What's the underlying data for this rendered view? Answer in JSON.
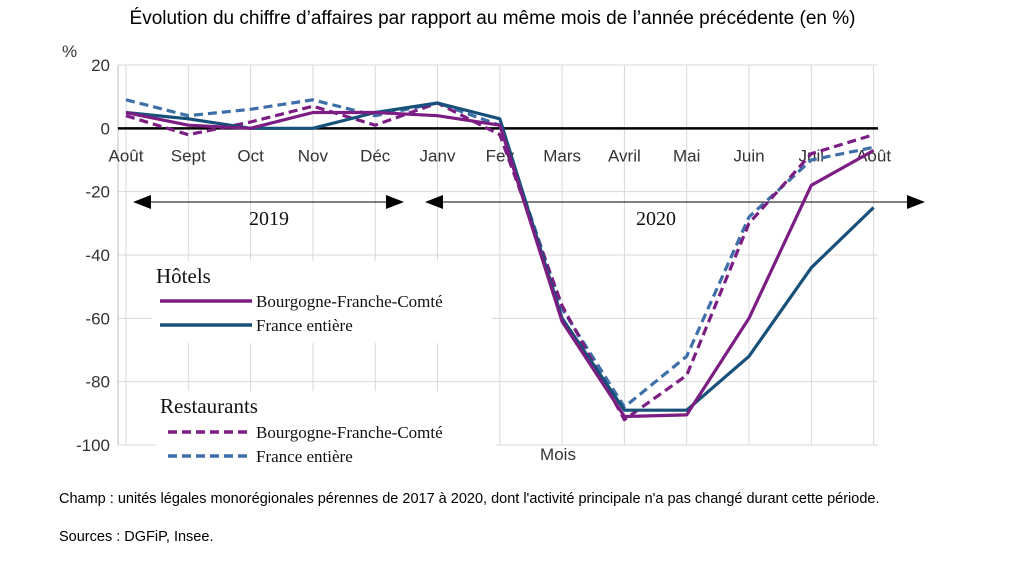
{
  "title": "Évolution du chiffre d’affaires par rapport au même mois de l’année précédente (en %)",
  "footnotes": {
    "champ": "Champ : unités légales monorégionales pérennes de 2017 à 2020, dont l'activité principale n'a pas changé durant cette période.",
    "sources": "Sources : DGFiP, Insee."
  },
  "chart_data": {
    "type": "line",
    "ylabel": "%",
    "xlabel": "Mois",
    "ylim": [
      -100,
      20
    ],
    "yticks": [
      20,
      0,
      -20,
      -40,
      -60,
      -80,
      -100
    ],
    "grid": true,
    "categories": [
      "Août",
      "Sept",
      "Oct",
      "Nov",
      "Déc",
      "Janv",
      "Fev",
      "Mars",
      "Avril",
      "Mai",
      "Juin",
      "Juil",
      "Août"
    ],
    "periods": [
      {
        "label": "2019",
        "from": "Août",
        "to": "Déc"
      },
      {
        "label": "2020",
        "from": "Janv",
        "to": "Août"
      }
    ],
    "legend_groups": [
      {
        "title": "Hôtels",
        "series_index": [
          0,
          1
        ]
      },
      {
        "title": "Restaurants",
        "series_index": [
          2,
          3
        ]
      }
    ],
    "series": [
      {
        "name": "Bourgogne-Franche-Comté",
        "group": "Hôtels",
        "color": "#7b1d82",
        "dashed": false,
        "values": [
          5,
          1,
          0,
          5,
          5,
          4,
          1,
          -61,
          -91,
          -90.5,
          -60,
          -18,
          -7
        ]
      },
      {
        "name": "France entière",
        "group": "Hôtels",
        "color": "#175079",
        "dashed": false,
        "values": [
          5,
          3,
          0,
          0,
          5,
          8,
          3,
          -60,
          -89,
          -89,
          -72,
          -44,
          -25
        ]
      },
      {
        "name": "Bourgogne-Franche-Comté",
        "group": "Restaurants",
        "color": "#7b1d82",
        "dashed": true,
        "values": [
          4,
          -2,
          2,
          7,
          1,
          8,
          -2,
          -56,
          -92,
          -78,
          -30,
          -8,
          -2
        ]
      },
      {
        "name": "France entière",
        "group": "Restaurants",
        "color": "#3e6fa8",
        "dashed": true,
        "values": [
          9,
          4,
          6,
          9,
          4,
          8,
          1,
          -57,
          -88,
          -72,
          -28,
          -10,
          -6
        ]
      }
    ]
  }
}
